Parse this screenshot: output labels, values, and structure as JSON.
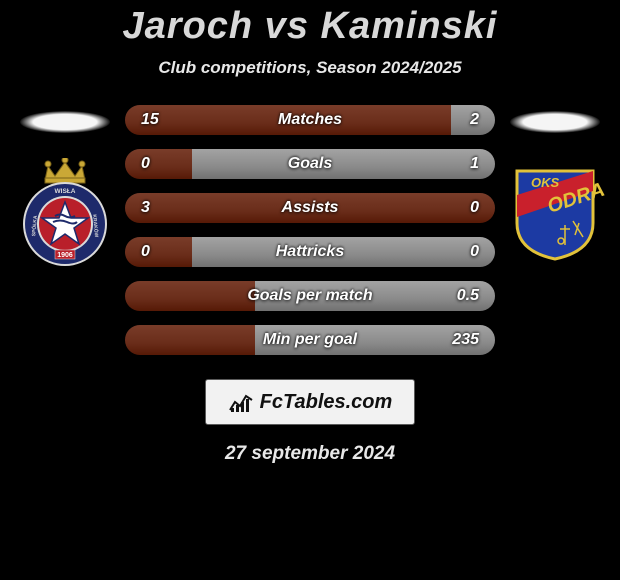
{
  "header": {
    "title": "Jaroch vs Kaminski",
    "subtitle": "Club competitions, Season 2024/2025"
  },
  "comparison": {
    "left_color": "#6a2d1a",
    "right_color": "#8a8a8a",
    "rows": [
      {
        "label": "Matches",
        "left_val": "15",
        "right_val": "2",
        "left_pct": 88
      },
      {
        "label": "Goals",
        "left_val": "0",
        "right_val": "1",
        "left_pct": 18
      },
      {
        "label": "Assists",
        "left_val": "3",
        "right_val": "0",
        "left_pct": 100
      },
      {
        "label": "Hattricks",
        "left_val": "0",
        "right_val": "0",
        "left_pct": 18
      },
      {
        "label": "Goals per match",
        "left_val": "",
        "right_val": "0.5",
        "left_pct": 35
      },
      {
        "label": "Min per goal",
        "left_val": "",
        "right_val": "235",
        "left_pct": 35
      }
    ]
  },
  "branding": {
    "text": "FcTables.com"
  },
  "footer": {
    "date": "27 september 2024"
  },
  "crests": {
    "left": {
      "crown_color": "#caa836",
      "ring_outer": "#dadada",
      "ring_text_bg": "#1e2a6b",
      "inner_bg": "#b91f2a",
      "star_bg": "#ffffff",
      "star_stroke": "#1e2a6b",
      "year": "1906",
      "ring_text_top": "WISŁA",
      "ring_text_right": "KRAKÓW",
      "ring_text_left": "SPÓŁKA"
    },
    "right": {
      "shield_bg": "#1c3aa3",
      "shield_border": "#e2c23a",
      "stripe_color": "#c9202c",
      "text_color": "#e2c23a",
      "top_text": "OKS",
      "main_text": "ODRA"
    }
  }
}
